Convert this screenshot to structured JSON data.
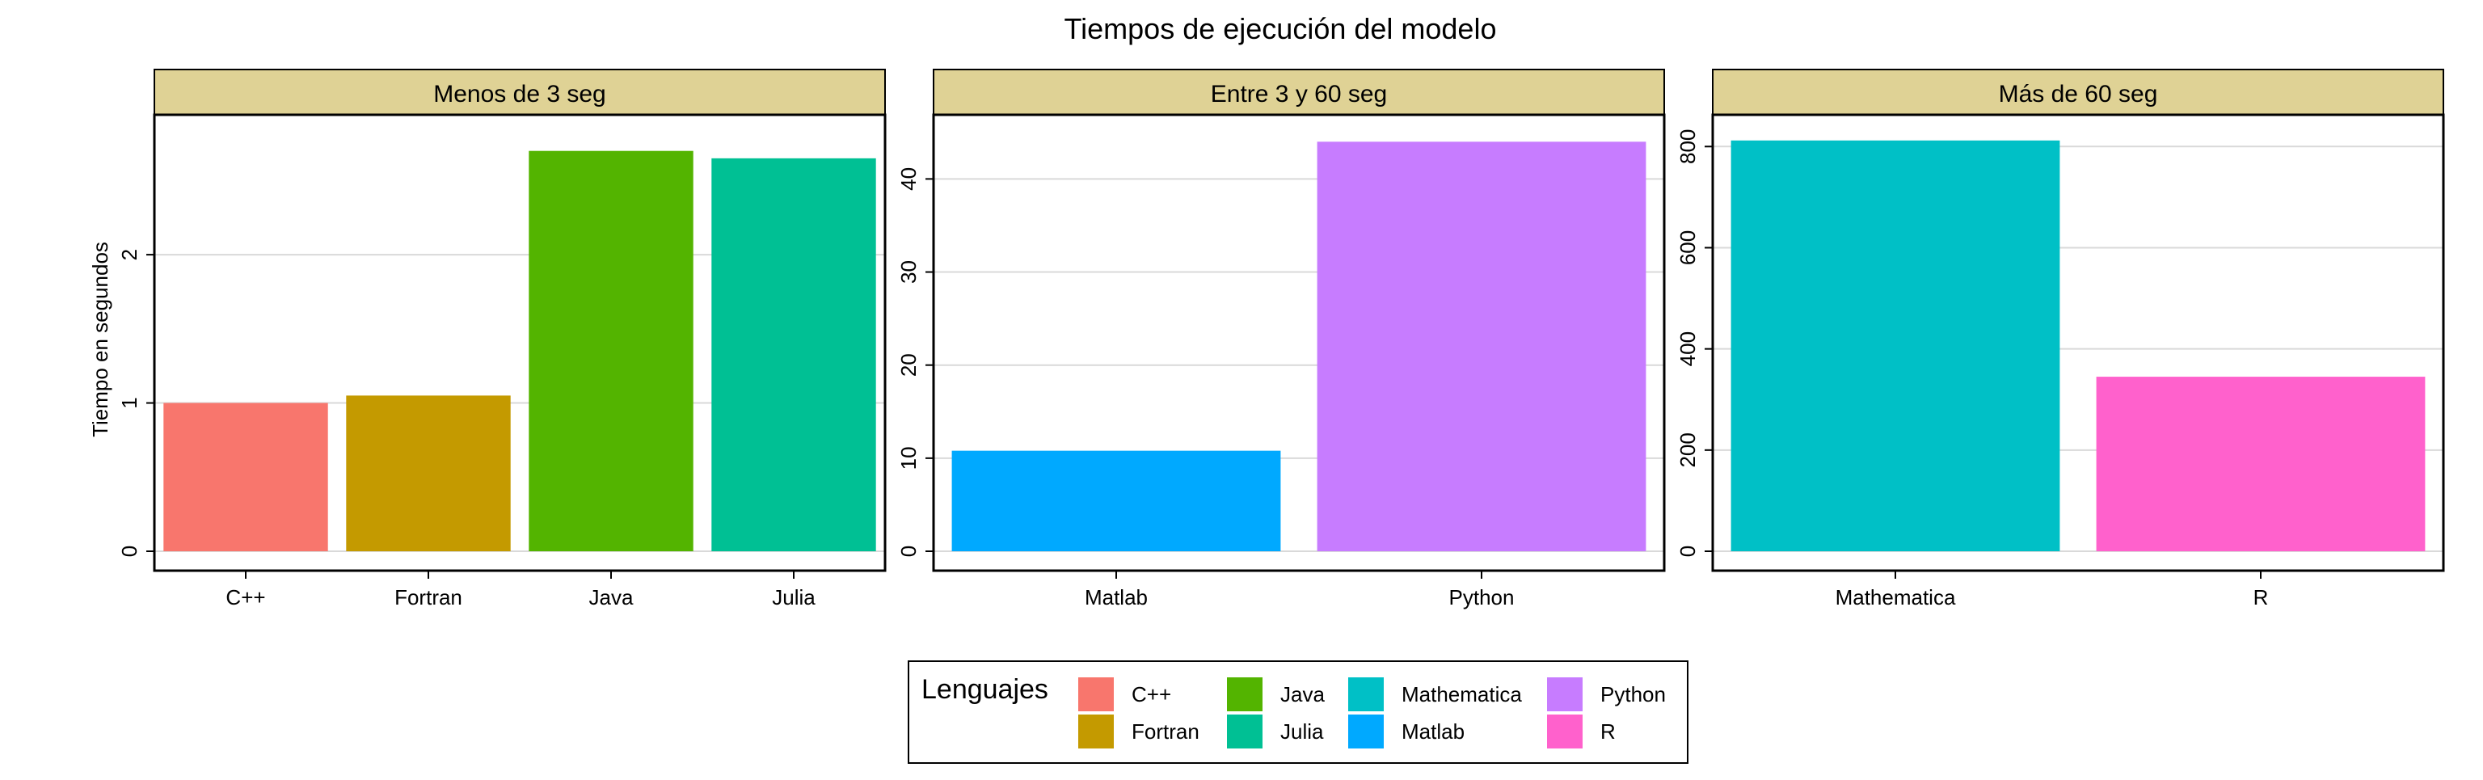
{
  "chart_data": {
    "type": "bar",
    "title": "Tiempos de ejecución del modelo",
    "ylabel": "Tiempo en segundos",
    "xlabel": "",
    "grid": true,
    "legend_position": "bottom",
    "colors": {
      "C++": "#F8766D",
      "Fortran": "#C49A00",
      "Java": "#53B400",
      "Julia": "#00C094",
      "Mathematica": "#00B6EB",
      "Matlab": "#A58AFF",
      "Python": "#FB61D7",
      "R": "#FF61C3"
    },
    "panels": [
      {
        "label": "Menos de 3 seg",
        "categories": [
          "C++",
          "Fortran",
          "Java",
          "Julia"
        ],
        "values": [
          1.0,
          1.05,
          2.7,
          2.65
        ],
        "ylim": [
          0,
          2.9
        ],
        "yticks": [
          0,
          1,
          2
        ]
      },
      {
        "label": "Entre 3 y 60 seg",
        "categories": [
          "Matlab",
          "Python"
        ],
        "values": [
          10.8,
          44.0
        ],
        "ylim": [
          0,
          46.2
        ],
        "yticks": [
          0,
          10,
          20,
          30,
          40
        ]
      },
      {
        "label": "Más de 60 seg",
        "categories": [
          "Mathematica",
          "R"
        ],
        "values": [
          812,
          345
        ],
        "ylim": [
          0,
          850
        ],
        "yticks": [
          0,
          200,
          400,
          600,
          800
        ]
      }
    ],
    "legend": {
      "title": "Lenguajes",
      "entries": [
        "C++",
        "Fortran",
        "Java",
        "Julia",
        "Mathematica",
        "Matlab",
        "Python",
        "R"
      ]
    }
  }
}
